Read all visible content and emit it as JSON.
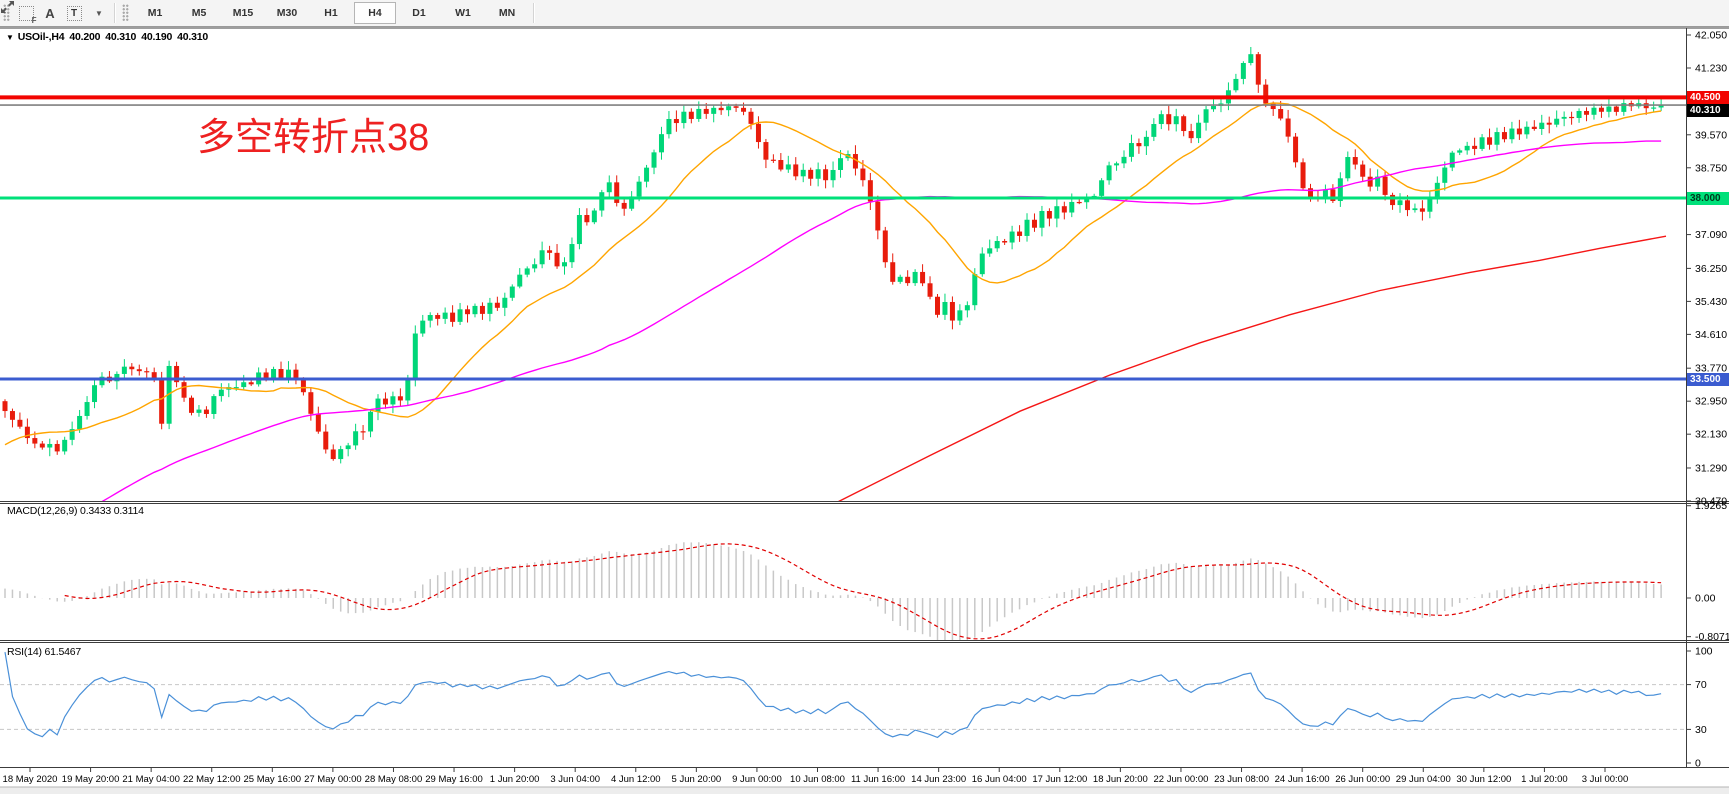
{
  "toolbar": {
    "tools": [
      {
        "name": "indicator-grid-tool",
        "glyph": "F"
      },
      {
        "name": "text-label-tool",
        "glyph": "A"
      },
      {
        "name": "text-box-tool",
        "glyph": "T"
      },
      {
        "name": "arrows-tool",
        "glyph": "arrows"
      }
    ],
    "dropdown_caret": "▼",
    "timeframes": [
      {
        "label": "M1",
        "active": false
      },
      {
        "label": "M5",
        "active": false
      },
      {
        "label": "M15",
        "active": false
      },
      {
        "label": "M30",
        "active": false
      },
      {
        "label": "H1",
        "active": false
      },
      {
        "label": "H4",
        "active": true
      },
      {
        "label": "D1",
        "active": false
      },
      {
        "label": "W1",
        "active": false
      },
      {
        "label": "MN",
        "active": false
      }
    ]
  },
  "chart": {
    "title": {
      "collapse_arrow": "▼",
      "symbol": "USOil-,H4",
      "open": "40.200",
      "high": "40.310",
      "low": "40.190",
      "close": "40.310"
    },
    "annotation": {
      "text": "多空转折点38",
      "color": "#ee2121"
    },
    "indicator_labels": {
      "macd": "MACD(12,26,9) 0.3433 0.3114",
      "rsi": "RSI(14) 61.5467"
    }
  },
  "chart_data": {
    "type": "candlestick",
    "symbol": "USOil",
    "timeframe": "H4",
    "ohlc_current": {
      "open": 40.2,
      "high": 40.31,
      "low": 40.19,
      "close": 40.31
    },
    "candle_colors": {
      "bull": "#00d678",
      "bear": "#e81c0c"
    },
    "price_axis": {
      "min": 30.45,
      "max": 42.23,
      "ticks": [
        {
          "label": "42.050",
          "price": 42.05
        },
        {
          "label": "41.230",
          "price": 41.23
        },
        {
          "label": "39.570",
          "price": 39.57
        },
        {
          "label": "38.750",
          "price": 38.75
        },
        {
          "label": "37.090",
          "price": 37.09
        },
        {
          "label": "36.250",
          "price": 36.25
        },
        {
          "label": "35.430",
          "price": 35.43
        },
        {
          "label": "34.610",
          "price": 34.61
        },
        {
          "label": "33.770",
          "price": 33.77
        },
        {
          "label": "32.950",
          "price": 32.95
        },
        {
          "label": "32.130",
          "price": 32.13
        },
        {
          "label": "31.290",
          "price": 31.29
        },
        {
          "label": "30.470",
          "price": 30.47
        }
      ]
    },
    "levels": [
      {
        "price": 40.5,
        "label": "40.500",
        "color": "#f20400",
        "thickness": 4,
        "badge_bg": "#f20400",
        "badge_fg": "#ffffff",
        "role": "resistance-line"
      },
      {
        "price": 40.31,
        "label": "40.310",
        "color": "#808080",
        "thickness": 1.6,
        "badge_bg": "#000000",
        "badge_fg": "#ffffff",
        "role": "current-price"
      },
      {
        "price": 38.0,
        "label": "38.000",
        "color": "#00e07a",
        "thickness": 3,
        "badge_bg": "#00e07a",
        "badge_fg": "#00391d",
        "role": "support-line"
      },
      {
        "price": 33.5,
        "label": "33.500",
        "color": "#3b5cd0",
        "thickness": 3,
        "badge_bg": "#3b5cd0",
        "badge_fg": "#ffffff",
        "role": "support-line"
      }
    ],
    "time_axis": {
      "labels": [
        "18 May 2020",
        "19 May 20:00",
        "21 May 04:00",
        "22 May 12:00",
        "25 May 16:00",
        "27 May 00:00",
        "28 May 08:00",
        "29 May 16:00",
        "1 Jun 20:00",
        "3 Jun 04:00",
        "4 Jun 12:00",
        "5 Jun 20:00",
        "9 Jun 00:00",
        "10 Jun 08:00",
        "11 Jun 16:00",
        "14 Jun 23:00",
        "16 Jun 04:00",
        "17 Jun 12:00",
        "18 Jun 20:00",
        "22 Jun 00:00",
        "23 Jun 08:00",
        "24 Jun 16:00",
        "26 Jun 00:00",
        "29 Jun 04:00",
        "30 Jun 12:00",
        "1 Jul 20:00",
        "3 Jul 00:00"
      ]
    },
    "price_path": [
      [
        0,
        32.9
      ],
      [
        8,
        32.6
      ],
      [
        16,
        32.4
      ],
      [
        24,
        32.15
      ],
      [
        32,
        31.95
      ],
      [
        40,
        31.8
      ],
      [
        48,
        31.95
      ],
      [
        56,
        31.7
      ],
      [
        64,
        32.0
      ],
      [
        72,
        32.3
      ],
      [
        80,
        32.6
      ],
      [
        88,
        33.0
      ],
      [
        96,
        33.4
      ],
      [
        104,
        33.6
      ],
      [
        112,
        33.4
      ],
      [
        120,
        33.7
      ],
      [
        128,
        33.9
      ],
      [
        136,
        33.6
      ],
      [
        144,
        33.75
      ],
      [
        152,
        33.5
      ],
      [
        158,
        33.6
      ],
      [
        163,
        31.95
      ],
      [
        169,
        33.8
      ],
      [
        176,
        33.45
      ],
      [
        183,
        33.1
      ],
      [
        190,
        32.6
      ],
      [
        197,
        32.9
      ],
      [
        204,
        32.5
      ],
      [
        211,
        32.9
      ],
      [
        218,
        33.3
      ],
      [
        225,
        33.1
      ],
      [
        232,
        33.45
      ],
      [
        239,
        33.2
      ],
      [
        246,
        33.6
      ],
      [
        253,
        33.35
      ],
      [
        260,
        33.7
      ],
      [
        267,
        33.45
      ],
      [
        274,
        33.8
      ],
      [
        281,
        33.5
      ],
      [
        288,
        33.75
      ],
      [
        295,
        33.5
      ],
      [
        302,
        33.3
      ],
      [
        309,
        32.8
      ],
      [
        316,
        32.3
      ],
      [
        323,
        31.9
      ],
      [
        330,
        31.6
      ],
      [
        337,
        31.4
      ],
      [
        344,
        32.0
      ],
      [
        351,
        31.7
      ],
      [
        358,
        32.4
      ],
      [
        365,
        32.15
      ],
      [
        372,
        32.8
      ],
      [
        379,
        33.1
      ],
      [
        386,
        32.85
      ],
      [
        393,
        33.05
      ],
      [
        400,
        32.9
      ],
      [
        406,
        33.2
      ],
      [
        412,
        34.2
      ],
      [
        419,
        35.1
      ],
      [
        426,
        34.8
      ],
      [
        433,
        35.25
      ],
      [
        440,
        34.9
      ],
      [
        447,
        35.2
      ],
      [
        454,
        34.85
      ],
      [
        461,
        35.3
      ],
      [
        468,
        35.05
      ],
      [
        475,
        35.35
      ],
      [
        482,
        35.1
      ],
      [
        489,
        35.45
      ],
      [
        496,
        35.2
      ],
      [
        503,
        35.5
      ],
      [
        510,
        35.75
      ],
      [
        517,
        36.0
      ],
      [
        524,
        36.3
      ],
      [
        531,
        36.1
      ],
      [
        538,
        36.5
      ],
      [
        545,
        36.8
      ],
      [
        552,
        36.5
      ],
      [
        559,
        36.2
      ],
      [
        566,
        36.5
      ],
      [
        573,
        36.9
      ],
      [
        580,
        37.6
      ],
      [
        587,
        37.35
      ],
      [
        594,
        37.7
      ],
      [
        601,
        38.1
      ],
      [
        608,
        38.45
      ],
      [
        615,
        38.0
      ],
      [
        622,
        37.6
      ],
      [
        629,
        37.9
      ],
      [
        636,
        38.3
      ],
      [
        643,
        38.6
      ],
      [
        650,
        38.9
      ],
      [
        657,
        39.3
      ],
      [
        664,
        39.7
      ],
      [
        671,
        40.05
      ],
      [
        678,
        39.85
      ],
      [
        685,
        40.15
      ],
      [
        692,
        39.95
      ],
      [
        699,
        40.25
      ],
      [
        706,
        40.05
      ],
      [
        713,
        40.3
      ],
      [
        720,
        40.1
      ],
      [
        727,
        40.35
      ],
      [
        734,
        40.15
      ],
      [
        741,
        40.3
      ],
      [
        748,
        39.95
      ],
      [
        755,
        39.6
      ],
      [
        762,
        39.2
      ],
      [
        769,
        38.8
      ],
      [
        776,
        39.0
      ],
      [
        783,
        38.6
      ],
      [
        790,
        38.85
      ],
      [
        797,
        38.5
      ],
      [
        804,
        38.75
      ],
      [
        811,
        38.45
      ],
      [
        818,
        38.7
      ],
      [
        825,
        38.4
      ],
      [
        832,
        38.65
      ],
      [
        839,
        38.9
      ],
      [
        846,
        39.15
      ],
      [
        853,
        38.85
      ],
      [
        860,
        38.6
      ],
      [
        867,
        38.2
      ],
      [
        874,
        37.6
      ],
      [
        881,
        36.8
      ],
      [
        888,
        36.2
      ],
      [
        895,
        35.8
      ],
      [
        902,
        36.15
      ],
      [
        909,
        35.85
      ],
      [
        916,
        36.25
      ],
      [
        923,
        35.9
      ],
      [
        930,
        35.55
      ],
      [
        937,
        35.1
      ],
      [
        944,
        35.45
      ],
      [
        951,
        34.85
      ],
      [
        958,
        35.3
      ],
      [
        965,
        35.05
      ],
      [
        972,
        35.9
      ],
      [
        979,
        36.4
      ],
      [
        986,
        36.9
      ],
      [
        993,
        36.65
      ],
      [
        1000,
        37.1
      ],
      [
        1007,
        36.85
      ],
      [
        1014,
        37.3
      ],
      [
        1021,
        37.05
      ],
      [
        1028,
        37.5
      ],
      [
        1035,
        37.25
      ],
      [
        1042,
        37.65
      ],
      [
        1049,
        37.45
      ],
      [
        1056,
        37.8
      ],
      [
        1063,
        37.6
      ],
      [
        1070,
        37.95
      ],
      [
        1077,
        37.75
      ],
      [
        1084,
        38.1
      ],
      [
        1091,
        37.9
      ],
      [
        1098,
        38.25
      ],
      [
        1105,
        38.6
      ],
      [
        1112,
        38.95
      ],
      [
        1119,
        38.75
      ],
      [
        1126,
        39.15
      ],
      [
        1133,
        39.45
      ],
      [
        1140,
        39.2
      ],
      [
        1147,
        39.55
      ],
      [
        1154,
        39.85
      ],
      [
        1161,
        40.1
      ],
      [
        1168,
        39.8
      ],
      [
        1175,
        40.05
      ],
      [
        1182,
        39.7
      ],
      [
        1189,
        39.4
      ],
      [
        1196,
        39.75
      ],
      [
        1203,
        40.1
      ],
      [
        1210,
        40.35
      ],
      [
        1217,
        40.15
      ],
      [
        1224,
        40.45
      ],
      [
        1231,
        40.75
      ],
      [
        1238,
        41.1
      ],
      [
        1245,
        41.45
      ],
      [
        1250,
        41.6
      ],
      [
        1255,
        41.15
      ],
      [
        1260,
        40.7
      ],
      [
        1265,
        40.35
      ],
      [
        1270,
        40.1
      ],
      [
        1275,
        40.3
      ],
      [
        1282,
        39.9
      ],
      [
        1289,
        39.5
      ],
      [
        1296,
        38.9
      ],
      [
        1302,
        38.3
      ],
      [
        1308,
        37.9
      ],
      [
        1314,
        38.3
      ],
      [
        1320,
        37.85
      ],
      [
        1326,
        38.25
      ],
      [
        1332,
        37.8
      ],
      [
        1338,
        38.35
      ],
      [
        1344,
        38.8
      ],
      [
        1350,
        39.1
      ],
      [
        1357,
        38.8
      ],
      [
        1364,
        38.5
      ],
      [
        1371,
        38.2
      ],
      [
        1378,
        38.5
      ],
      [
        1385,
        38.1
      ],
      [
        1392,
        37.75
      ],
      [
        1399,
        38.05
      ],
      [
        1406,
        37.6
      ],
      [
        1413,
        37.9
      ],
      [
        1420,
        37.5
      ],
      [
        1427,
        37.85
      ],
      [
        1434,
        38.2
      ],
      [
        1441,
        38.6
      ],
      [
        1448,
        38.95
      ],
      [
        1455,
        39.25
      ],
      [
        1462,
        39.1
      ],
      [
        1469,
        39.4
      ],
      [
        1476,
        39.2
      ],
      [
        1483,
        39.5
      ],
      [
        1490,
        39.35
      ],
      [
        1497,
        39.6
      ],
      [
        1504,
        39.45
      ],
      [
        1511,
        39.7
      ],
      [
        1518,
        39.55
      ],
      [
        1525,
        39.8
      ],
      [
        1532,
        39.65
      ],
      [
        1539,
        39.9
      ],
      [
        1546,
        39.75
      ],
      [
        1553,
        40.0
      ],
      [
        1560,
        39.85
      ],
      [
        1567,
        40.1
      ],
      [
        1574,
        39.95
      ],
      [
        1581,
        40.2
      ],
      [
        1588,
        40.05
      ],
      [
        1595,
        40.25
      ],
      [
        1602,
        40.1
      ],
      [
        1609,
        40.3
      ],
      [
        1616,
        40.15
      ],
      [
        1623,
        40.35
      ],
      [
        1630,
        40.2
      ],
      [
        1637,
        40.4
      ],
      [
        1644,
        40.25
      ],
      [
        1651,
        40.3
      ],
      [
        1658,
        40.28
      ],
      [
        1663,
        40.31
      ]
    ],
    "moving_averages": {
      "fast": {
        "color": "#ffa500",
        "period": 16,
        "prehistory_bars": 30,
        "prehistory_from": 29.0
      },
      "mid": {
        "color": "#ff00ff",
        "period": 60,
        "prehistory_bars": 70,
        "prehistory_from": 24.0
      },
      "slow": {
        "color": "#f51616",
        "waypoints": [
          [
            838,
            30.45
          ],
          [
            930,
            31.6
          ],
          [
            1020,
            32.7
          ],
          [
            1110,
            33.6
          ],
          [
            1200,
            34.4
          ],
          [
            1290,
            35.1
          ],
          [
            1380,
            35.7
          ],
          [
            1470,
            36.15
          ],
          [
            1540,
            36.45
          ],
          [
            1600,
            36.75
          ],
          [
            1666,
            37.05
          ]
        ]
      }
    },
    "macd": {
      "params": [
        12,
        26,
        9
      ],
      "value": 0.3433,
      "signal_value": 0.3114,
      "hist_color": "#c8c8c8",
      "signal_color": "#e00000",
      "axis": [
        {
          "label": "1.9265",
          "v": 1.9265
        },
        {
          "label": "0.00",
          "v": 0
        },
        {
          "label": "-0.8071",
          "v": -0.8071
        }
      ]
    },
    "rsi": {
      "period": 14,
      "value": 61.5467,
      "color": "#4a90d8",
      "levels": [
        70,
        30
      ],
      "axis": [
        {
          "label": "100",
          "v": 100
        },
        {
          "label": "70",
          "v": 70
        },
        {
          "label": "30",
          "v": 30
        },
        {
          "label": "0",
          "v": 0
        }
      ]
    }
  }
}
